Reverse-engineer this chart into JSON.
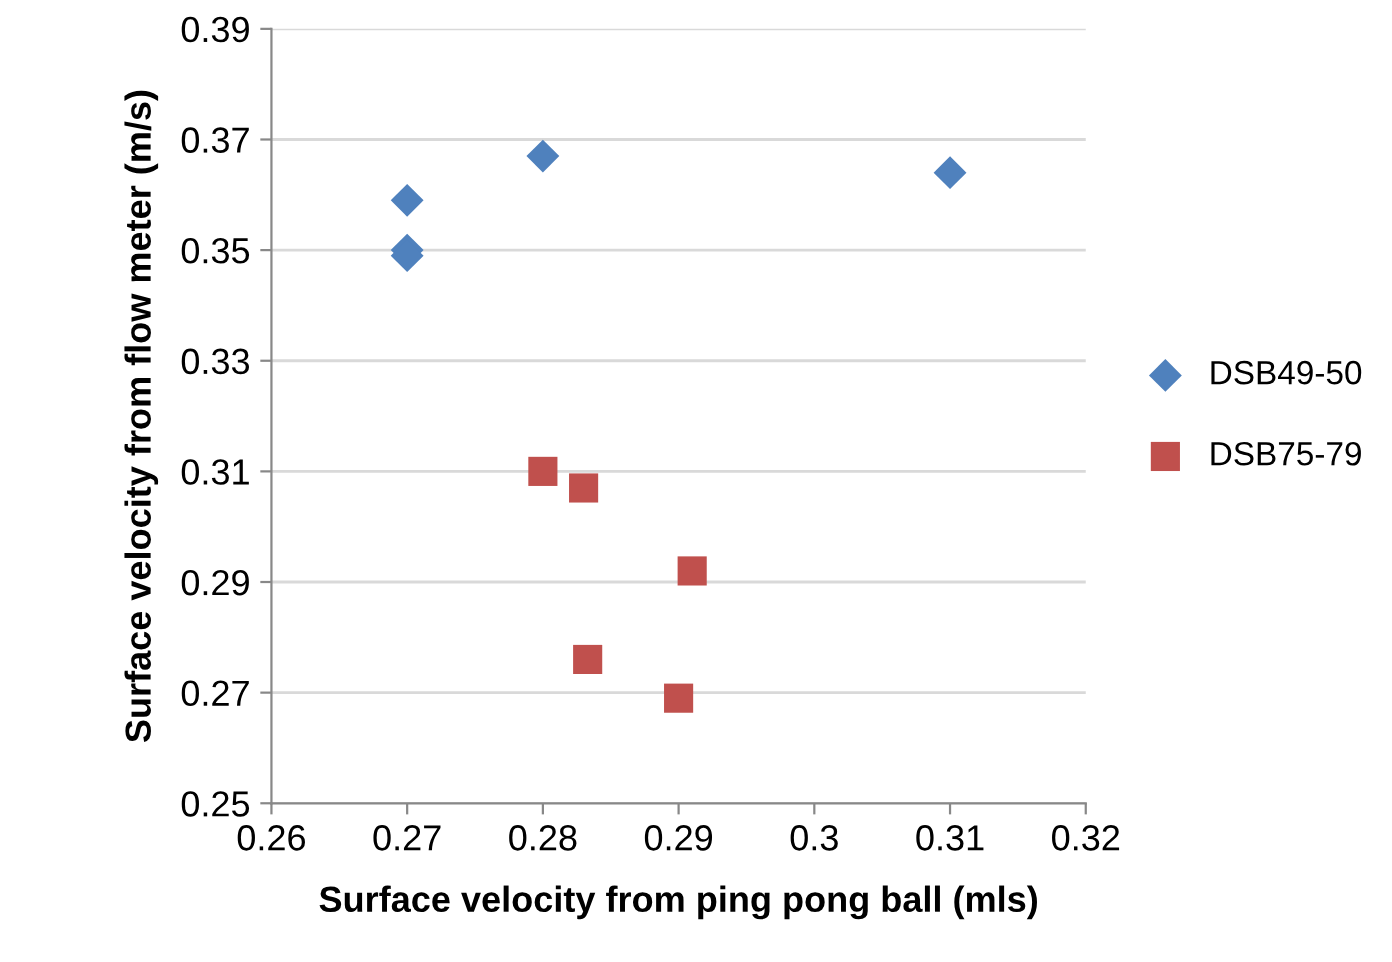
{
  "chart_data": {
    "type": "scatter",
    "xlabel": "Surface velocity from ping pong ball (mls)",
    "ylabel": "Surface velocity from flow meter (m/s)",
    "series": [
      {
        "name": "DSB49-50",
        "color": "#4f81bd",
        "marker": "diamond",
        "x": [
          0.27,
          0.27,
          0.27,
          0.28,
          0.31
        ],
        "values": [
          0.359,
          0.35,
          0.349,
          0.367,
          0.364
        ]
      },
      {
        "name": "DSB75-79",
        "color": "#c0504d",
        "marker": "square",
        "x": [
          0.28,
          0.283,
          0.2833,
          0.29,
          0.291
        ],
        "values": [
          0.31,
          0.307,
          0.276,
          0.269,
          0.292
        ]
      }
    ],
    "xlim": [
      0.26,
      0.32
    ],
    "xticks": [
      0.26,
      0.27,
      0.28,
      0.29,
      0.3,
      0.31,
      0.32
    ],
    "ylim": [
      0.25,
      0.39
    ],
    "yticks": [
      0.25,
      0.27,
      0.29,
      0.31,
      0.33,
      0.35,
      0.37,
      0.39
    ],
    "grid": "y",
    "legend": "right"
  }
}
